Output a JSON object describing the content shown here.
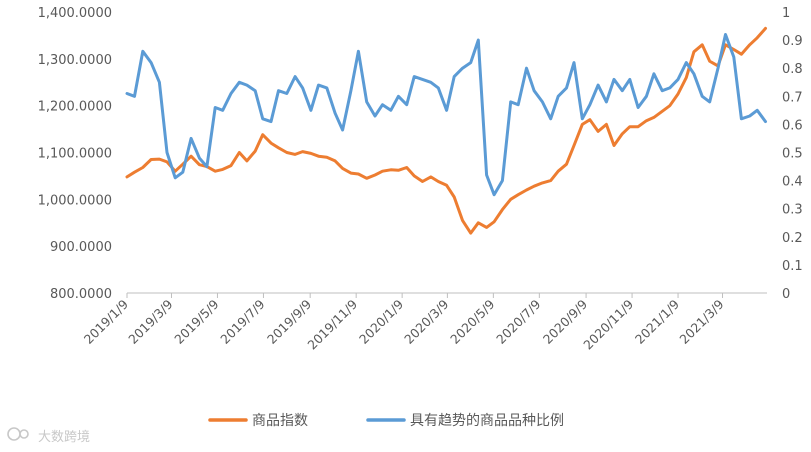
{
  "chart_data": {
    "type": "line",
    "title": "",
    "xlabel": "",
    "ylabel": "",
    "x_ticks": [
      "2019/1/9",
      "2019/3/9",
      "2019/5/9",
      "2019/7/9",
      "2019/9/9",
      "2019/11/9",
      "2020/1/9",
      "2020/3/9",
      "2020/5/9",
      "2020/7/9",
      "2020/9/9",
      "2020/11/9",
      "2021/1/9",
      "2021/3/9"
    ],
    "x_range": [
      "2019/1/9",
      "2021/5/7"
    ],
    "y_left": {
      "min": 800,
      "max": 1400,
      "ticks": [
        "800.0000",
        "900.0000",
        "1,000.0000",
        "1,100.0000",
        "1,200.0000",
        "1,300.0000",
        "1,400.0000"
      ]
    },
    "y_right": {
      "min": 0,
      "max": 1,
      "ticks": [
        "0",
        "0.1",
        "0.2",
        "0.3",
        "0.4",
        "0.5",
        "0.6",
        "0.7",
        "0.8",
        "0.9",
        "1"
      ]
    },
    "legend_position": "bottom",
    "grid": false,
    "series": [
      {
        "name": "商品指数",
        "axis": "left",
        "color": "#ED7D31",
        "points": [
          [
            "2019/1/9",
            1048
          ],
          [
            "2019/1/19",
            1058
          ],
          [
            "2019/1/30",
            1068
          ],
          [
            "2019/2/10",
            1085
          ],
          [
            "2019/2/21",
            1086
          ],
          [
            "2019/3/3",
            1080
          ],
          [
            "2019/3/14",
            1060
          ],
          [
            "2019/3/24",
            1075
          ],
          [
            "2019/4/4",
            1092
          ],
          [
            "2019/4/15",
            1074
          ],
          [
            "2019/4/25",
            1070
          ],
          [
            "2019/5/6",
            1060
          ],
          [
            "2019/5/16",
            1064
          ],
          [
            "2019/5/27",
            1072
          ],
          [
            "2019/6/7",
            1100
          ],
          [
            "2019/6/17",
            1082
          ],
          [
            "2019/6/28",
            1103
          ],
          [
            "2019/7/8",
            1138
          ],
          [
            "2019/7/19",
            1120
          ],
          [
            "2019/7/29",
            1110
          ],
          [
            "2019/8/9",
            1100
          ],
          [
            "2019/8/20",
            1096
          ],
          [
            "2019/8/30",
            1102
          ],
          [
            "2019/9/10",
            1098
          ],
          [
            "2019/9/20",
            1092
          ],
          [
            "2019/10/1",
            1090
          ],
          [
            "2019/10/12",
            1082
          ],
          [
            "2019/10/22",
            1066
          ],
          [
            "2019/11/2",
            1056
          ],
          [
            "2019/11/12",
            1054
          ],
          [
            "2019/11/23",
            1045
          ],
          [
            "2019/12/4",
            1052
          ],
          [
            "2019/12/14",
            1060
          ],
          [
            "2019/12/25",
            1063
          ],
          [
            "2020/1/4",
            1062
          ],
          [
            "2020/1/15",
            1068
          ],
          [
            "2020/1/25",
            1050
          ],
          [
            "2020/2/5",
            1038
          ],
          [
            "2020/2/16",
            1048
          ],
          [
            "2020/2/26",
            1038
          ],
          [
            "2020/3/8",
            1030
          ],
          [
            "2020/3/18",
            1005
          ],
          [
            "2020/3/29",
            955
          ],
          [
            "2020/4/9",
            928
          ],
          [
            "2020/4/19",
            950
          ],
          [
            "2020/4/30",
            940
          ],
          [
            "2020/5/10",
            952
          ],
          [
            "2020/5/21",
            978
          ],
          [
            "2020/6/1",
            1000
          ],
          [
            "2020/6/11",
            1010
          ],
          [
            "2020/6/22",
            1020
          ],
          [
            "2020/7/2",
            1028
          ],
          [
            "2020/7/13",
            1035
          ],
          [
            "2020/7/24",
            1040
          ],
          [
            "2020/8/3",
            1060
          ],
          [
            "2020/8/14",
            1075
          ],
          [
            "2020/8/24",
            1115
          ],
          [
            "2020/9/4",
            1160
          ],
          [
            "2020/9/14",
            1170
          ],
          [
            "2020/9/25",
            1145
          ],
          [
            "2020/10/6",
            1160
          ],
          [
            "2020/10/16",
            1115
          ],
          [
            "2020/10/27",
            1140
          ],
          [
            "2020/11/6",
            1155
          ],
          [
            "2020/11/17",
            1155
          ],
          [
            "2020/11/28",
            1168
          ],
          [
            "2020/12/8",
            1175
          ],
          [
            "2020/12/19",
            1188
          ],
          [
            "2020/12/29",
            1200
          ],
          [
            "2021/1/9",
            1225
          ],
          [
            "2021/1/20",
            1260
          ],
          [
            "2021/1/30",
            1315
          ],
          [
            "2021/2/10",
            1330
          ],
          [
            "2021/2/20",
            1295
          ],
          [
            "2021/3/3",
            1285
          ],
          [
            "2021/3/13",
            1330
          ],
          [
            "2021/3/24",
            1320
          ],
          [
            "2021/4/3",
            1310
          ],
          [
            "2021/4/14",
            1330
          ],
          [
            "2021/4/24",
            1345
          ],
          [
            "2021/5/5",
            1365
          ]
        ]
      },
      {
        "name": "具有趋势的商品品种比例",
        "axis": "right",
        "color": "#5B9BD5",
        "points": [
          [
            "2019/1/9",
            0.71
          ],
          [
            "2019/1/19",
            0.7
          ],
          [
            "2019/1/30",
            0.86
          ],
          [
            "2019/2/10",
            0.82
          ],
          [
            "2019/2/21",
            0.75
          ],
          [
            "2019/3/3",
            0.5
          ],
          [
            "2019/3/14",
            0.41
          ],
          [
            "2019/3/24",
            0.43
          ],
          [
            "2019/4/4",
            0.55
          ],
          [
            "2019/4/15",
            0.48
          ],
          [
            "2019/4/25",
            0.45
          ],
          [
            "2019/5/6",
            0.66
          ],
          [
            "2019/5/16",
            0.65
          ],
          [
            "2019/5/27",
            0.71
          ],
          [
            "2019/6/7",
            0.75
          ],
          [
            "2019/6/17",
            0.74
          ],
          [
            "2019/6/28",
            0.72
          ],
          [
            "2019/7/8",
            0.62
          ],
          [
            "2019/7/19",
            0.61
          ],
          [
            "2019/7/29",
            0.72
          ],
          [
            "2019/8/9",
            0.71
          ],
          [
            "2019/8/20",
            0.77
          ],
          [
            "2019/8/30",
            0.73
          ],
          [
            "2019/9/10",
            0.65
          ],
          [
            "2019/9/20",
            0.74
          ],
          [
            "2019/10/1",
            0.73
          ],
          [
            "2019/10/12",
            0.64
          ],
          [
            "2019/10/22",
            0.58
          ],
          [
            "2019/11/2",
            0.72
          ],
          [
            "2019/11/12",
            0.86
          ],
          [
            "2019/11/23",
            0.68
          ],
          [
            "2019/12/4",
            0.63
          ],
          [
            "2019/12/14",
            0.67
          ],
          [
            "2019/12/25",
            0.65
          ],
          [
            "2020/1/4",
            0.7
          ],
          [
            "2020/1/15",
            0.67
          ],
          [
            "2020/1/25",
            0.77
          ],
          [
            "2020/2/5",
            0.76
          ],
          [
            "2020/2/16",
            0.75
          ],
          [
            "2020/2/26",
            0.73
          ],
          [
            "2020/3/8",
            0.65
          ],
          [
            "2020/3/18",
            0.77
          ],
          [
            "2020/3/29",
            0.8
          ],
          [
            "2020/4/9",
            0.82
          ],
          [
            "2020/4/19",
            0.9
          ],
          [
            "2020/4/30",
            0.42
          ],
          [
            "2020/5/10",
            0.35
          ],
          [
            "2020/5/21",
            0.4
          ],
          [
            "2020/6/1",
            0.68
          ],
          [
            "2020/6/11",
            0.67
          ],
          [
            "2020/6/22",
            0.8
          ],
          [
            "2020/7/2",
            0.72
          ],
          [
            "2020/7/13",
            0.68
          ],
          [
            "2020/7/24",
            0.62
          ],
          [
            "2020/8/3",
            0.7
          ],
          [
            "2020/8/14",
            0.73
          ],
          [
            "2020/8/24",
            0.82
          ],
          [
            "2020/9/4",
            0.62
          ],
          [
            "2020/9/14",
            0.67
          ],
          [
            "2020/9/25",
            0.74
          ],
          [
            "2020/10/6",
            0.68
          ],
          [
            "2020/10/16",
            0.76
          ],
          [
            "2020/10/27",
            0.72
          ],
          [
            "2020/11/6",
            0.76
          ],
          [
            "2020/11/17",
            0.66
          ],
          [
            "2020/11/28",
            0.7
          ],
          [
            "2020/12/8",
            0.78
          ],
          [
            "2020/12/19",
            0.72
          ],
          [
            "2020/12/29",
            0.73
          ],
          [
            "2021/1/9",
            0.76
          ],
          [
            "2021/1/20",
            0.82
          ],
          [
            "2021/1/30",
            0.78
          ],
          [
            "2021/2/10",
            0.7
          ],
          [
            "2021/2/20",
            0.68
          ],
          [
            "2021/3/3",
            0.8
          ],
          [
            "2021/3/13",
            0.92
          ],
          [
            "2021/3/24",
            0.84
          ],
          [
            "2021/4/3",
            0.62
          ],
          [
            "2021/4/14",
            0.63
          ],
          [
            "2021/4/24",
            0.65
          ],
          [
            "2021/5/5",
            0.61
          ]
        ]
      }
    ]
  },
  "watermark": "大数跨境"
}
